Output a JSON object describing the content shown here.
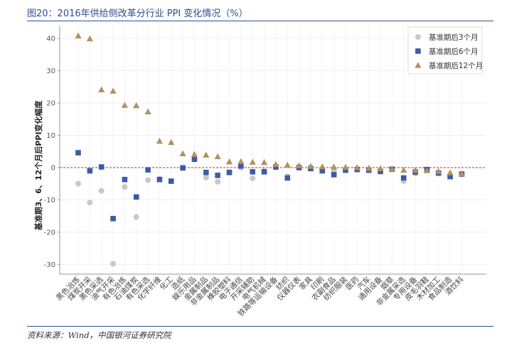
{
  "title": "图20：2016年供给侧改革分行业 PPI 变化情况（%）",
  "source": "资料来源：Wind，中国银河证券研究院",
  "chart_data": {
    "type": "scatter",
    "ylabel": "基准期3、6、12个月后PPI变化幅度",
    "ylim": [
      -33,
      44
    ],
    "yticks": [
      40,
      30,
      20,
      10,
      0,
      -10,
      -20,
      -30
    ],
    "grid": true,
    "legend_position": "top-right",
    "categories": [
      "黑色冶炼",
      "煤炭开采",
      "黑色采选",
      "油气开采",
      "有色冶炼",
      "石油煤炭",
      "有色采选",
      "化学纤维",
      "化工",
      "造纸",
      "娱乐用品",
      "金属制品",
      "非金属制品",
      "橡胶塑料",
      "电子通信",
      "开采辅助",
      "电气机械",
      "铁路等运输设备",
      "纺织",
      "仪器仪表",
      "家具",
      "印刷",
      "农副食品",
      "纺织服装",
      "医药",
      "汽车",
      "通用设备",
      "烟草",
      "非金属采选",
      "专用设备",
      "皮毛羽鞋",
      "木材加工",
      "食品制造",
      "酒饮料"
    ],
    "series": [
      {
        "name": "基准期后3个月",
        "marker": "circle",
        "color": "#c8c8c8",
        "values": [
          -5,
          -10.8,
          -7.2,
          -29.8,
          -6,
          -15.3,
          -3.9,
          -3.5,
          -4.2,
          0,
          2.5,
          -3.1,
          -4.4,
          -1.4,
          0,
          -3.3,
          -1,
          0,
          -2.7,
          0,
          0,
          -0.8,
          -1.2,
          -0.8,
          -0.5,
          -0.7,
          -1,
          -0.5,
          -4.2,
          -1.8,
          -0.8,
          -1.7,
          -2.4,
          -2.1
        ]
      },
      {
        "name": "基准期后6个月",
        "marker": "square",
        "color": "#3a5ca8",
        "values": [
          4.6,
          -1,
          0.2,
          -15.8,
          -3.7,
          -9.1,
          -0.7,
          -3.7,
          -4.2,
          -0.1,
          2.6,
          -1.5,
          -2.4,
          -1.5,
          0.5,
          -1.3,
          -1.3,
          0.2,
          -3.2,
          0,
          -0.3,
          -1,
          -2.2,
          -0.8,
          -0.6,
          -0.8,
          -1.2,
          -0.5,
          -3.2,
          -1.4,
          -0.6,
          -1.7,
          -2.8,
          -2
        ]
      },
      {
        "name": "基准期后12个月",
        "marker": "triangle",
        "color": "#b29060",
        "values": [
          40.8,
          39.9,
          24.1,
          23.7,
          19.3,
          19.2,
          17.3,
          8.2,
          7.8,
          4.3,
          4.1,
          3.9,
          3.4,
          1.8,
          1.9,
          1.7,
          1.6,
          1,
          0.8,
          0.6,
          0.4,
          0.3,
          0.2,
          0.1,
          0,
          -0.2,
          -0.3,
          -0.4,
          -0.8,
          -0.8,
          -0.9,
          -1.2,
          -1.6,
          -1.9
        ]
      }
    ]
  }
}
